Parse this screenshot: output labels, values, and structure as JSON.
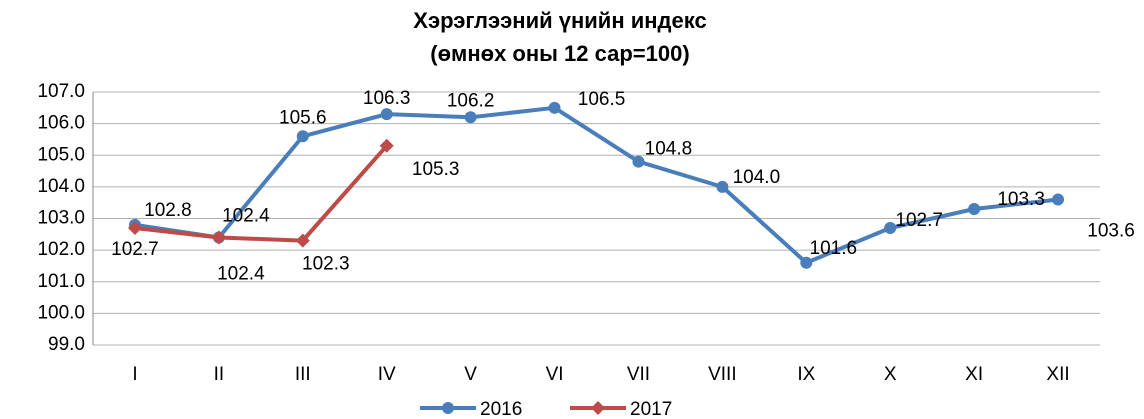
{
  "chart_data": {
    "type": "line",
    "title": "Хэрэглээний үнийн индекс",
    "subtitle": "(өмнөх оны 12 сар=100)",
    "categories": [
      "I",
      "II",
      "III",
      "IV",
      "V",
      "VI",
      "VII",
      "VIII",
      "IX",
      "X",
      "XI",
      "XII"
    ],
    "series": [
      {
        "name": "2016",
        "color": "#4a7ebb",
        "marker": "circle",
        "values": [
          102.8,
          102.4,
          105.6,
          106.3,
          106.2,
          106.5,
          104.8,
          104.0,
          101.6,
          102.7,
          103.3,
          103.6
        ],
        "value_labels": [
          "102.8",
          "102.4",
          "105.6",
          "106.3",
          "106.2",
          "106.5",
          "104.8",
          "104.0",
          "101.6",
          "102.7",
          "103.3",
          "103.6"
        ]
      },
      {
        "name": "2017",
        "color": "#be4b48",
        "marker": "diamond",
        "values": [
          102.7,
          102.4,
          102.3,
          105.3,
          null,
          null,
          null,
          null,
          null,
          null,
          null,
          null
        ],
        "value_labels": [
          "102.7",
          "102.4",
          "102.3",
          "105.3",
          null,
          null,
          null,
          null,
          null,
          null,
          null,
          null
        ]
      }
    ],
    "ylim": [
      99,
      107
    ],
    "yticks": [
      {
        "value": 99,
        "label": "99.0"
      },
      {
        "value": 100,
        "label": "100.0"
      },
      {
        "value": 101,
        "label": "101.0"
      },
      {
        "value": 102,
        "label": "102.0"
      },
      {
        "value": 103,
        "label": "103.0"
      },
      {
        "value": 104,
        "label": "104.0"
      },
      {
        "value": 105,
        "label": "105.0"
      },
      {
        "value": 106,
        "label": "106.0"
      },
      {
        "value": 107,
        "label": "107.0"
      }
    ],
    "grid": true,
    "legend": "bottom"
  }
}
